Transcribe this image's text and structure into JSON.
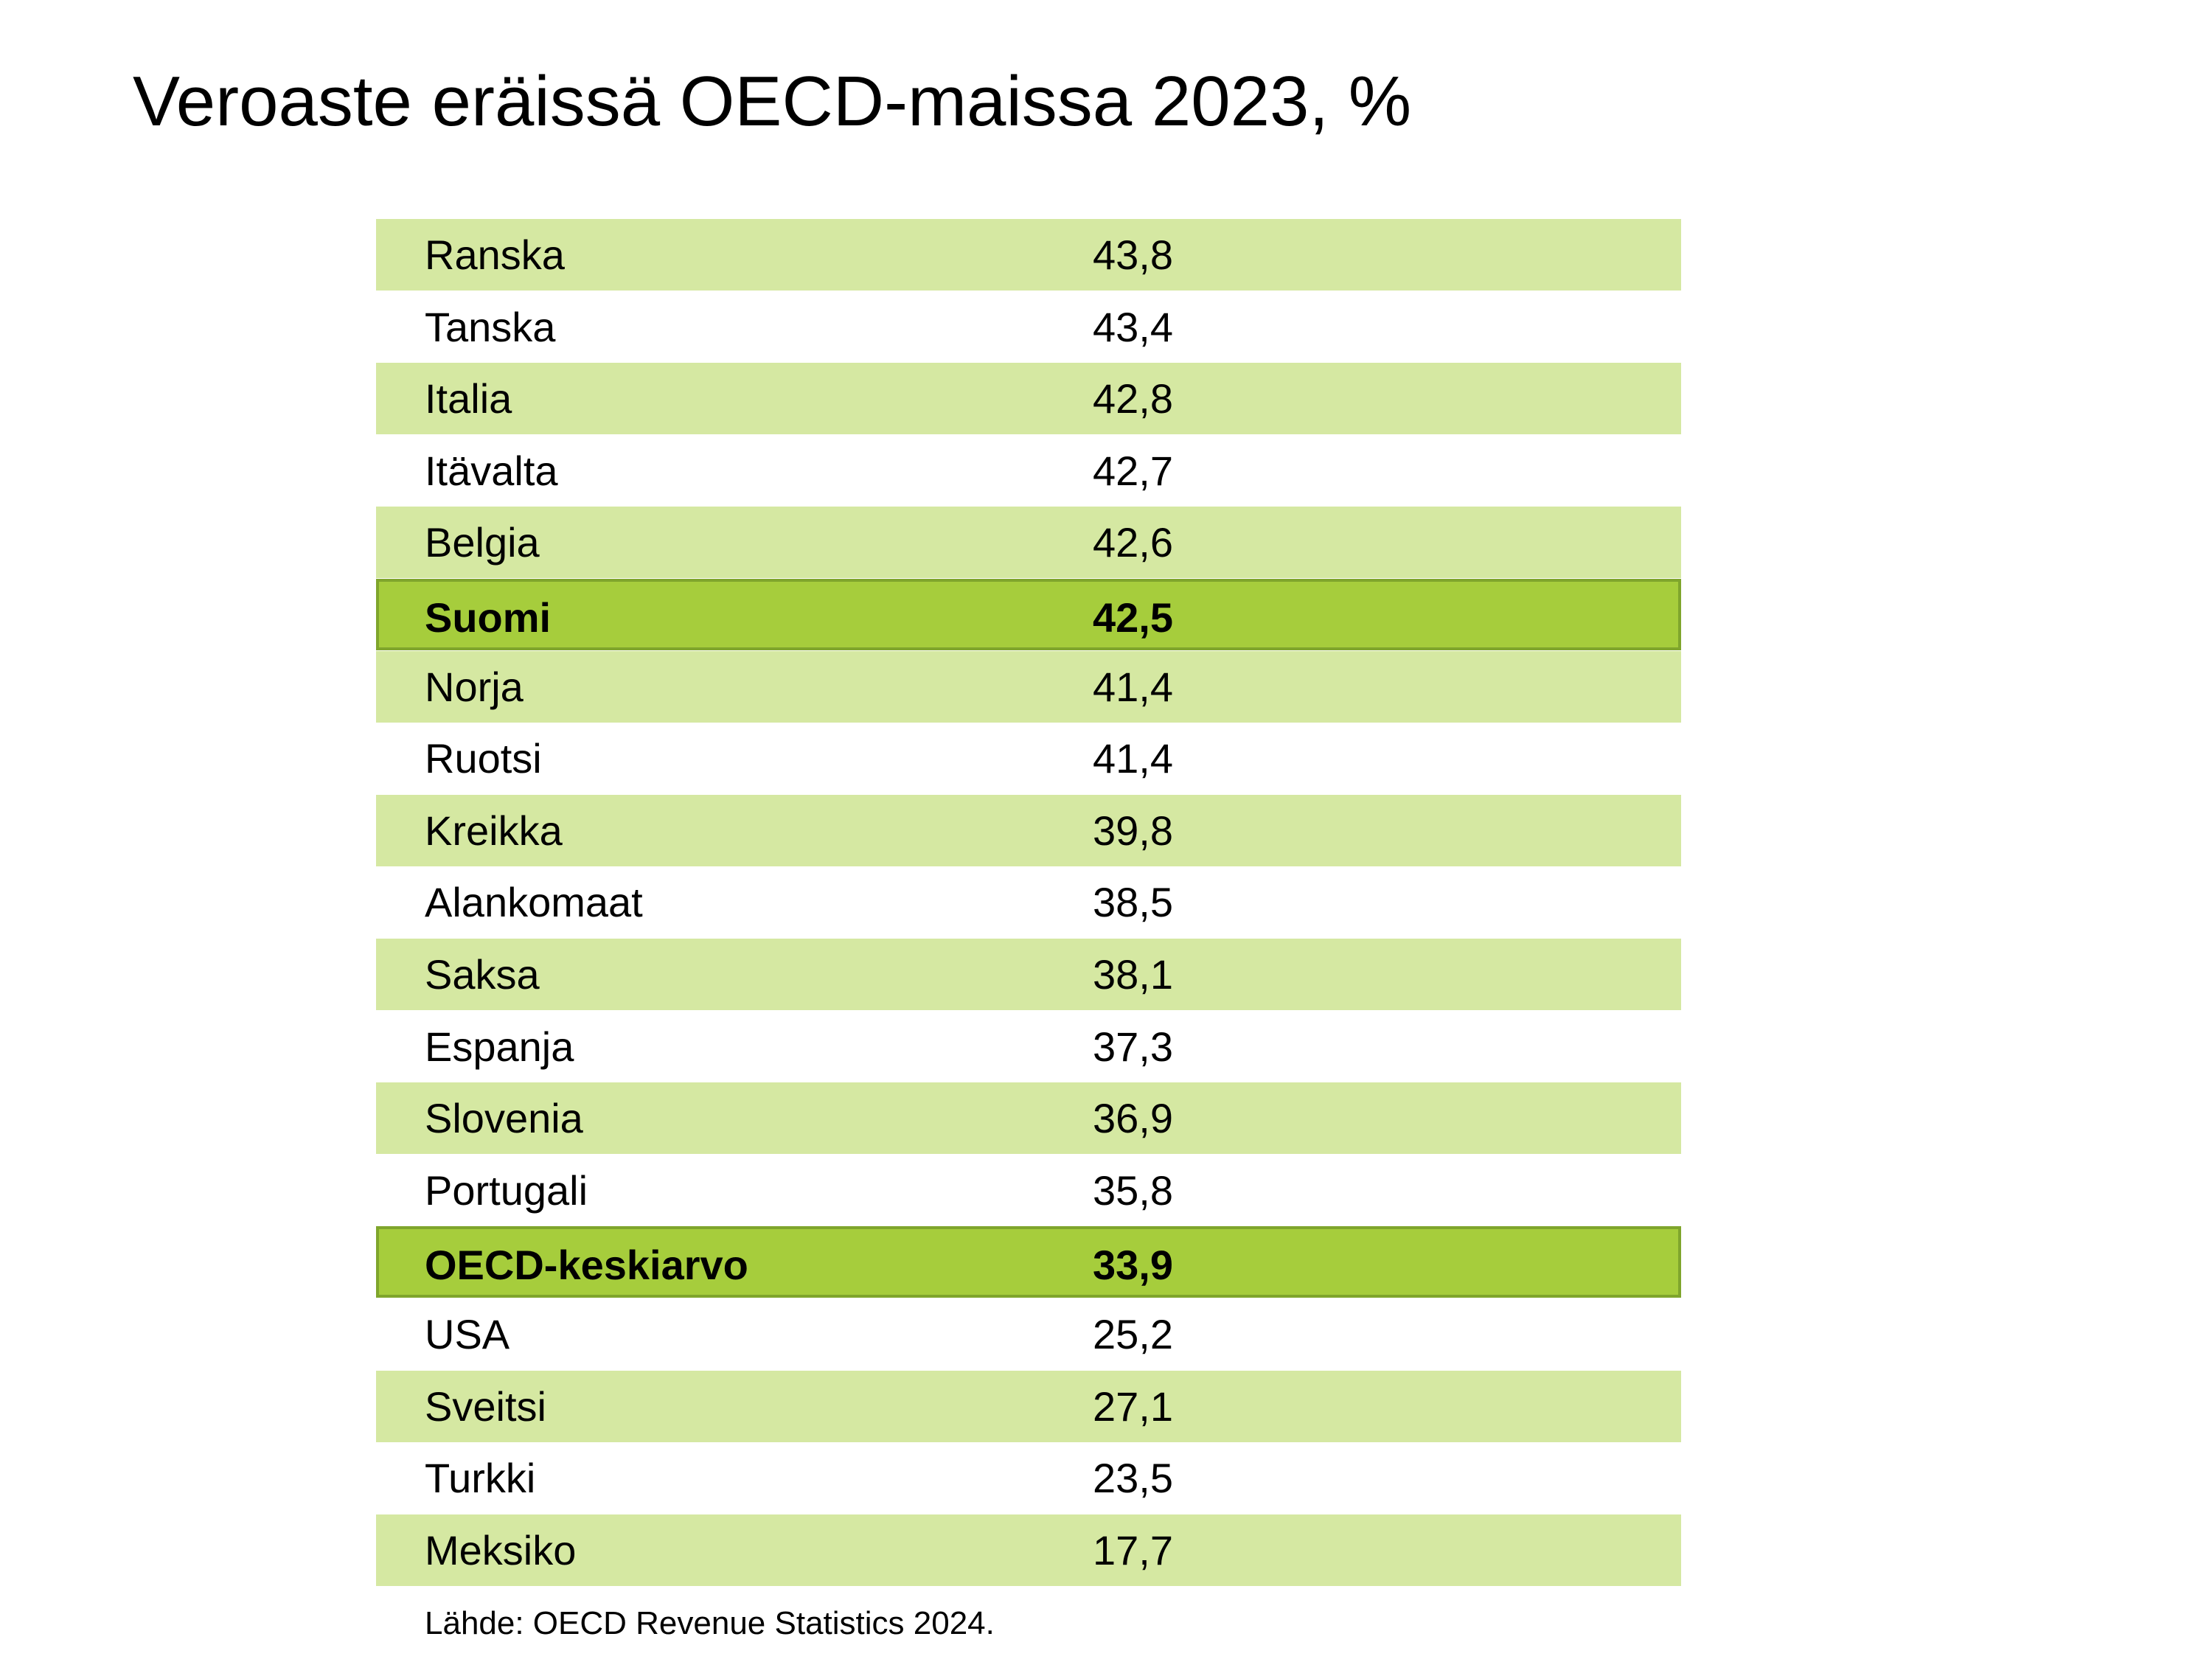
{
  "chart_data": {
    "type": "table",
    "title": "Veroaste eräissä OECD-maissa 2023, %",
    "source": "Lähde: OECD Revenue Statistics 2024.",
    "rows": [
      {
        "name": "Ranska",
        "value": "43,8",
        "style": "stripe"
      },
      {
        "name": "Tanska",
        "value": "43,4",
        "style": "plain"
      },
      {
        "name": "Italia",
        "value": "42,8",
        "style": "stripe"
      },
      {
        "name": "Itävalta",
        "value": "42,7",
        "style": "plain"
      },
      {
        "name": "Belgia",
        "value": "42,6",
        "style": "stripe"
      },
      {
        "name": "Suomi",
        "value": "42,5",
        "style": "highlight"
      },
      {
        "name": "Norja",
        "value": "41,4",
        "style": "stripe"
      },
      {
        "name": "Ruotsi",
        "value": "41,4",
        "style": "plain"
      },
      {
        "name": "Kreikka",
        "value": "39,8",
        "style": "stripe"
      },
      {
        "name": "Alankomaat",
        "value": "38,5",
        "style": "plain"
      },
      {
        "name": "Saksa",
        "value": "38,1",
        "style": "stripe"
      },
      {
        "name": "Espanja",
        "value": "37,3",
        "style": "plain"
      },
      {
        "name": "Slovenia",
        "value": "36,9",
        "style": "stripe"
      },
      {
        "name": "Portugali",
        "value": "35,8",
        "style": "plain"
      },
      {
        "name": "OECD-keskiarvo",
        "value": "33,9",
        "style": "highlight"
      },
      {
        "name": "USA",
        "value": "25,2",
        "style": "plain"
      },
      {
        "name": "Sveitsi",
        "value": "27,1",
        "style": "stripe"
      },
      {
        "name": "Turkki",
        "value": "23,5",
        "style": "plain"
      },
      {
        "name": "Meksiko",
        "value": "17,7",
        "style": "stripe"
      }
    ],
    "colors": {
      "stripe": "#d5e8a2",
      "highlight": "#a6cd3c",
      "highlight_border": "#7fa52c"
    }
  }
}
